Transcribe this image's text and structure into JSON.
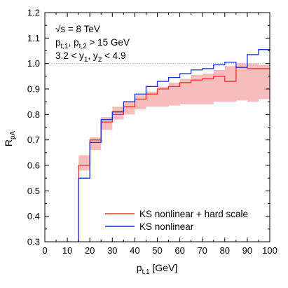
{
  "chart_data": {
    "type": "line",
    "xlabel_main": "p",
    "xlabel_sub": "t,1",
    "xlabel_unit": " [GeV]",
    "ylabel_main": "R",
    "ylabel_sub": "pA",
    "xlim": [
      0,
      100
    ],
    "ylim": [
      0.3,
      1.2
    ],
    "xticks": [
      0,
      10,
      20,
      30,
      40,
      50,
      60,
      70,
      80,
      90,
      100
    ],
    "yticks": [
      "0.3",
      "0.4",
      "0.5",
      "0.6",
      "0.7",
      "0.8",
      "0.9",
      "1.0",
      "1.1",
      "1.2"
    ],
    "reference_line": 1.0,
    "annotations": {
      "line1": "√s = 8 TeV",
      "line2_p1": "p",
      "line2_s1": "t,1",
      "line2_mid": ", p",
      "line2_s2": "t,2",
      "line2_end": " > 15 GeV",
      "line3_a": "3.2 < y",
      "line3_s1": "1",
      "line3_b": ", y",
      "line3_s2": "2",
      "line3_c": " < 4.9"
    },
    "bin_edges": [
      15,
      20,
      25,
      30,
      35,
      40,
      45,
      50,
      55,
      60,
      65,
      70,
      75,
      80,
      85,
      90,
      95,
      100
    ],
    "series": [
      {
        "name": "KS nonlinear + hard scale",
        "color": "#e8342c",
        "values": [
          0.6,
          0.7,
          0.77,
          0.8,
          0.83,
          0.86,
          0.88,
          0.9,
          0.91,
          0.925,
          0.935,
          0.94,
          0.95,
          0.93,
          0.985,
          0.98,
          0.98
        ]
      },
      {
        "name": "KS nonlinear",
        "color": "#1c2fd1",
        "values": [
          0.55,
          0.69,
          0.78,
          0.81,
          0.85,
          0.88,
          0.91,
          0.93,
          0.945,
          0.96,
          0.975,
          0.98,
          0.995,
          1.005,
          0.985,
          1.035,
          1.055
        ]
      }
    ],
    "band": {
      "color": "#f7bcbc",
      "lower": [
        0.58,
        0.66,
        0.74,
        0.78,
        0.8,
        0.82,
        0.83,
        0.83,
        0.835,
        0.84,
        0.84,
        0.84,
        0.85,
        0.85,
        0.855,
        0.85,
        0.86
      ],
      "upper": [
        0.64,
        0.71,
        0.79,
        0.83,
        0.85,
        0.875,
        0.89,
        0.91,
        0.925,
        0.94,
        0.955,
        0.96,
        0.975,
        0.99,
        1.0,
        1.0,
        0.995
      ]
    },
    "legend": [
      "KS nonlinear + hard scale",
      "KS nonlinear"
    ],
    "legend_position": "bottom-right",
    "grid": false
  }
}
